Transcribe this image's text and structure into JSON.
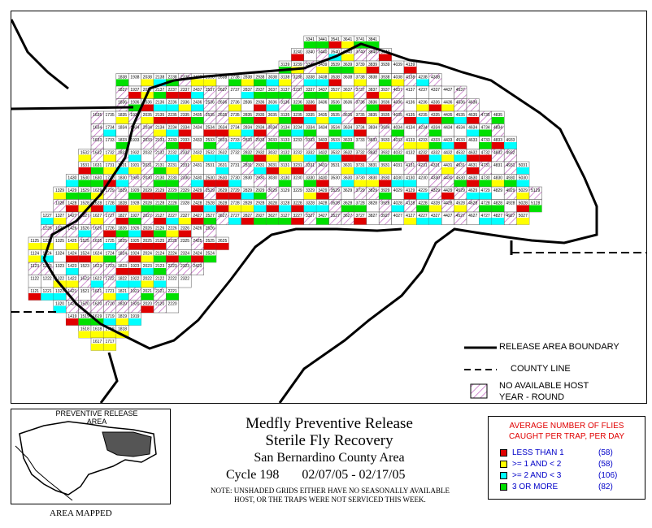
{
  "title": {
    "line1": "Medfly Preventive Release",
    "line2": "Sterile Fly Recovery",
    "line3": "San Bernardino County Area",
    "cycle": "Cycle 198",
    "dates": "02/07/05 - 02/17/05",
    "note_line1": "NOTE: UNSHADED GRIDS EITHER HAVE NO SEASONALLY AVAILABLE",
    "note_line2": "HOST, OR THE TRAPS WERE NOT SERVICED THIS WEEK."
  },
  "map_legend": {
    "boundary": "RELEASE AREA BOUNDARY",
    "county": "COUNTY LINE",
    "nohost_line1": "NO AVAILABLE HOST",
    "nohost_line2": "YEAR - ROUND"
  },
  "inset": {
    "label_line1": "PREVENTIVE RELEASE",
    "label_line2": "AREA",
    "caption": "AREA MAPPED"
  },
  "fly_legend": {
    "title_line1": "AVERAGE NUMBER OF FLIES",
    "title_line2": "CAUGHT PER TRAP, PER DAY",
    "items": [
      {
        "label": "LESS THAN 1",
        "count": "(58)",
        "color": "#e00000"
      },
      {
        "label": ">= 1 AND < 2",
        "count": "(58)",
        "color": "#ffff00"
      },
      {
        "label": ">= 2 AND < 3",
        "count": "(106)",
        "color": "#00ffff"
      },
      {
        "label": "3 OR MORE",
        "count": "(82)",
        "color": "#00e000"
      }
    ]
  },
  "colors": {
    "red": "#e00000",
    "yellow": "#ffff00",
    "cyan": "#00ffff",
    "green": "#00e000",
    "hatch": "#c060c0",
    "boundary": "#000000"
  },
  "grid": {
    "rows": [
      {
        "row": 41,
        "first_col": 33,
        "last_col": 38
      },
      {
        "row": 40,
        "first_col": 32,
        "last_col": 39
      },
      {
        "row": 39,
        "first_col": 31,
        "last_col": 41
      },
      {
        "row": 38,
        "first_col": 18,
        "last_col": 43
      },
      {
        "row": 37,
        "first_col": 18,
        "last_col": 45
      },
      {
        "row": 36,
        "first_col": 18,
        "last_col": 46
      },
      {
        "row": 35,
        "first_col": 16,
        "last_col": 48
      },
      {
        "row": 34,
        "first_col": 16,
        "last_col": 48
      },
      {
        "row": 33,
        "first_col": 16,
        "last_col": 49
      },
      {
        "row": 32,
        "first_col": 15,
        "last_col": 49
      },
      {
        "row": 31,
        "first_col": 15,
        "last_col": 50
      },
      {
        "row": 30,
        "first_col": 14,
        "last_col": 50
      },
      {
        "row": 29,
        "first_col": 13,
        "last_col": 51
      },
      {
        "row": 28,
        "first_col": 13,
        "last_col": 51
      },
      {
        "row": 27,
        "first_col": 12,
        "last_col": 50
      },
      {
        "row": 26,
        "first_col": 12,
        "last_col": 25
      },
      {
        "row": 25,
        "first_col": 11,
        "last_col": 26
      },
      {
        "row": 24,
        "first_col": 11,
        "last_col": 25
      },
      {
        "row": 23,
        "first_col": 11,
        "last_col": 24
      },
      {
        "row": 22,
        "first_col": 11,
        "last_col": 23
      },
      {
        "row": 21,
        "first_col": 11,
        "last_col": 22
      },
      {
        "row": 20,
        "first_col": 13,
        "last_col": 22
      },
      {
        "row": 19,
        "first_col": 14,
        "last_col": 19
      },
      {
        "row": 18,
        "first_col": 15,
        "last_col": 18
      },
      {
        "row": 17,
        "first_col": 16,
        "last_col": 17
      }
    ]
  }
}
